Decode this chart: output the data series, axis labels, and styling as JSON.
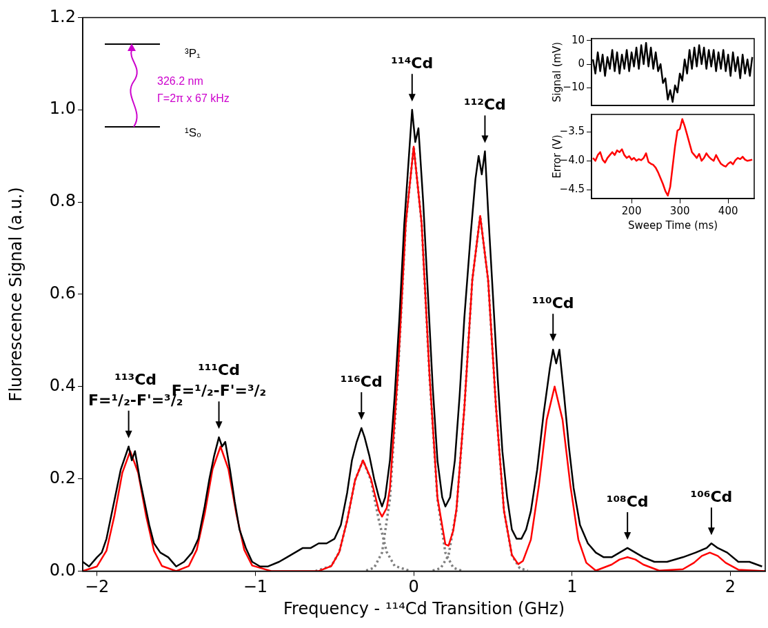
{
  "chart_data": [
    {
      "type": "line",
      "xlabel": "Frequency - ¹¹⁴Cd Transition (GHz)",
      "ylabel": "Fluorescence Signal (a.u.)",
      "marker": "none",
      "grid": false,
      "xlim": [
        -2.09,
        2.22
      ],
      "xticks": [
        {
          "value": -2,
          "label": "−2"
        },
        {
          "value": -1,
          "label": "−1"
        },
        0,
        1,
        2
      ],
      "ylim": [
        0,
        1.2
      ],
      "yticks": [
        {
          "value": 0,
          "label": "0.0"
        },
        {
          "value": 0.2,
          "label": "0.2"
        },
        {
          "value": 0.4,
          "label": "0.4"
        },
        {
          "value": 0.6,
          "label": "0.6"
        },
        {
          "value": 0.8,
          "label": "0.8"
        },
        {
          "value": 1,
          "label": "1.0"
        },
        {
          "value": 1.2,
          "label": "1.2"
        }
      ],
      "annotations": [
        "³P₁",
        "¹S₀",
        "326.2 nm",
        "Γ=2π x 67 kHz",
        {
          "text": "¹¹³Cd\nF=¹/₂-F'=³/₂",
          "x": -1.8,
          "y": 0.27
        },
        {
          "text": "¹¹¹Cd\nF=¹/₂-F'=³/₂",
          "x": -1.23,
          "y": 0.29
        },
        {
          "text": "¹¹⁶Cd",
          "x": -0.33,
          "y": 0.31
        },
        {
          "text": "¹¹⁴Cd",
          "x": -0.01,
          "y": 1.0
        },
        {
          "text": "¹¹²Cd",
          "x": 0.45,
          "y": 0.91
        },
        {
          "text": "¹¹⁰Cd",
          "x": 0.88,
          "y": 0.48
        },
        {
          "text": "¹⁰⁸Cd",
          "x": 1.35,
          "y": 0.05
        },
        {
          "text": "¹⁰⁶Cd",
          "x": 1.88,
          "y": 0.06
        }
      ],
      "series": [
        {
          "color": "#000000",
          "line_style": "solid",
          "x": [
            -2.09,
            -2.05,
            -2.0,
            -1.97,
            -1.94,
            -1.91,
            -1.88,
            -1.85,
            -1.82,
            -1.8,
            -1.78,
            -1.76,
            -1.73,
            -1.7,
            -1.67,
            -1.64,
            -1.6,
            -1.55,
            -1.5,
            -1.45,
            -1.4,
            -1.36,
            -1.32,
            -1.29,
            -1.26,
            -1.23,
            -1.21,
            -1.19,
            -1.16,
            -1.13,
            -1.1,
            -1.06,
            -1.02,
            -0.97,
            -0.92,
            -0.85,
            -0.8,
            -0.75,
            -0.7,
            -0.65,
            -0.6,
            -0.55,
            -0.5,
            -0.46,
            -0.42,
            -0.39,
            -0.36,
            -0.33,
            -0.31,
            -0.28,
            -0.25,
            -0.22,
            -0.2,
            -0.18,
            -0.15,
            -0.12,
            -0.09,
            -0.06,
            -0.03,
            -0.01,
            0.01,
            0.03,
            0.06,
            0.09,
            0.12,
            0.15,
            0.18,
            0.2,
            0.23,
            0.26,
            0.29,
            0.32,
            0.36,
            0.39,
            0.41,
            0.43,
            0.45,
            0.47,
            0.5,
            0.53,
            0.56,
            0.59,
            0.62,
            0.65,
            0.68,
            0.71,
            0.74,
            0.78,
            0.82,
            0.86,
            0.88,
            0.9,
            0.92,
            0.95,
            0.98,
            1.01,
            1.05,
            1.1,
            1.15,
            1.2,
            1.25,
            1.3,
            1.35,
            1.4,
            1.45,
            1.52,
            1.6,
            1.7,
            1.78,
            1.85,
            1.88,
            1.92,
            1.98,
            2.05,
            2.12,
            2.2
          ],
          "values": [
            0.02,
            0.01,
            0.03,
            0.04,
            0.07,
            0.12,
            0.17,
            0.22,
            0.25,
            0.27,
            0.24,
            0.26,
            0.2,
            0.15,
            0.1,
            0.06,
            0.04,
            0.03,
            0.01,
            0.02,
            0.04,
            0.07,
            0.14,
            0.2,
            0.25,
            0.29,
            0.27,
            0.28,
            0.22,
            0.15,
            0.09,
            0.05,
            0.02,
            0.01,
            0.01,
            0.02,
            0.03,
            0.04,
            0.05,
            0.05,
            0.06,
            0.06,
            0.07,
            0.1,
            0.17,
            0.24,
            0.28,
            0.31,
            0.29,
            0.25,
            0.2,
            0.16,
            0.14,
            0.16,
            0.24,
            0.38,
            0.55,
            0.75,
            0.9,
            1.0,
            0.93,
            0.96,
            0.8,
            0.6,
            0.4,
            0.24,
            0.16,
            0.14,
            0.16,
            0.24,
            0.38,
            0.55,
            0.73,
            0.85,
            0.9,
            0.86,
            0.91,
            0.78,
            0.6,
            0.42,
            0.26,
            0.16,
            0.09,
            0.07,
            0.07,
            0.09,
            0.13,
            0.22,
            0.34,
            0.44,
            0.48,
            0.45,
            0.48,
            0.38,
            0.27,
            0.18,
            0.1,
            0.06,
            0.04,
            0.03,
            0.03,
            0.04,
            0.05,
            0.04,
            0.03,
            0.02,
            0.02,
            0.03,
            0.04,
            0.05,
            0.06,
            0.05,
            0.04,
            0.02,
            0.02,
            0.01
          ]
        },
        {
          "color": "#ff0000",
          "line_style": "solid",
          "x": [
            -2.09,
            -2.0,
            -1.94,
            -1.89,
            -1.84,
            -1.79,
            -1.74,
            -1.69,
            -1.64,
            -1.59,
            -1.5,
            -1.42,
            -1.37,
            -1.32,
            -1.27,
            -1.22,
            -1.17,
            -1.12,
            -1.07,
            -1.02,
            -0.9,
            -0.6,
            -0.52,
            -0.47,
            -0.42,
            -0.37,
            -0.32,
            -0.27,
            -0.22,
            -0.2,
            -0.17,
            -0.15,
            -0.1,
            -0.05,
            0,
            0.05,
            0.1,
            0.15,
            0.2,
            0.22,
            0.25,
            0.27,
            0.32,
            0.37,
            0.42,
            0.47,
            0.52,
            0.57,
            0.62,
            0.66,
            0.69,
            0.74,
            0.79,
            0.84,
            0.89,
            0.94,
            0.99,
            1.04,
            1.09,
            1.15,
            1.25,
            1.3,
            1.35,
            1.4,
            1.45,
            1.55,
            1.7,
            1.77,
            1.82,
            1.87,
            1.92,
            1.97,
            2.05,
            2.22
          ],
          "values": [
            0,
            0.01,
            0.044,
            0.12,
            0.213,
            0.26,
            0.213,
            0.12,
            0.044,
            0.011,
            0,
            0.011,
            0.046,
            0.124,
            0.221,
            0.27,
            0.221,
            0.124,
            0.046,
            0.012,
            0,
            0,
            0.011,
            0.041,
            0.11,
            0.197,
            0.24,
            0.2,
            0.131,
            0.118,
            0.137,
            0.18,
            0.428,
            0.754,
            0.92,
            0.754,
            0.425,
            0.159,
            0.058,
            0.055,
            0.088,
            0.134,
            0.354,
            0.631,
            0.77,
            0.631,
            0.354,
            0.131,
            0.035,
            0.015,
            0.022,
            0.068,
            0.184,
            0.328,
            0.4,
            0.328,
            0.184,
            0.068,
            0.018,
            0.001,
            0.014,
            0.025,
            0.03,
            0.025,
            0.014,
            0.001,
            0.004,
            0.018,
            0.033,
            0.04,
            0.033,
            0.018,
            0.003,
            0
          ]
        },
        {
          "color": "#808080",
          "line_style": "dotted",
          "x": [
            -0.62,
            -0.52,
            -0.47,
            -0.42,
            -0.37,
            -0.32,
            -0.27,
            -0.22,
            -0.17,
            -0.12,
            -0.02
          ],
          "values": [
            0,
            0.011,
            0.041,
            0.11,
            0.197,
            0.24,
            0.197,
            0.11,
            0.041,
            0.011,
            0
          ]
        },
        {
          "color": "#808080",
          "line_style": "dotted",
          "x": [
            -0.3,
            -0.25,
            -0.2,
            -0.15,
            -0.1,
            -0.05,
            0,
            0.05,
            0.1,
            0.15,
            0.2,
            0.25,
            0.3
          ],
          "values": [
            0.001,
            0.007,
            0.04,
            0.156,
            0.423,
            0.754,
            0.92,
            0.754,
            0.423,
            0.156,
            0.04,
            0.007,
            0.001
          ]
        },
        {
          "color": "#808080",
          "line_style": "dotted",
          "x": [
            0.12,
            0.17,
            0.22,
            0.27,
            0.32,
            0.37,
            0.42,
            0.47,
            0.52,
            0.57,
            0.62,
            0.67,
            0.72
          ],
          "values": [
            0.001,
            0.006,
            0.034,
            0.131,
            0.354,
            0.631,
            0.77,
            0.631,
            0.354,
            0.131,
            0.034,
            0.006,
            0.001
          ]
        }
      ]
    },
    {
      "type": "line",
      "ylabel": "Signal (mV)",
      "marker": "none",
      "grid": false,
      "tick_labels": "y",
      "xlim": [
        117,
        454
      ],
      "xticks": [
        200,
        300,
        400
      ],
      "ylim": [
        -17.5,
        10.8
      ],
      "yticks": [
        {
          "value": -10,
          "label": "−10"
        },
        0,
        10
      ],
      "series": [
        {
          "color": "#000000",
          "line_style": "solid",
          "x": [
            120,
            125,
            130,
            135,
            140,
            145,
            150,
            155,
            160,
            165,
            170,
            175,
            180,
            185,
            190,
            195,
            200,
            205,
            210,
            215,
            220,
            225,
            230,
            235,
            240,
            245,
            250,
            255,
            260,
            265,
            270,
            275,
            280,
            285,
            290,
            295,
            300,
            305,
            310,
            315,
            320,
            325,
            330,
            335,
            340,
            345,
            350,
            355,
            360,
            365,
            370,
            375,
            380,
            385,
            390,
            395,
            400,
            405,
            410,
            415,
            420,
            425,
            430,
            435,
            440,
            445,
            450
          ],
          "values": [
            2,
            -4,
            5,
            -3,
            4,
            -5,
            3,
            -2,
            6,
            -3,
            5,
            -4,
            4,
            -2,
            6,
            -3,
            5,
            -1,
            7,
            -2,
            8,
            0,
            9,
            -1,
            7,
            -2,
            5,
            -3,
            0,
            -8,
            -6,
            -15,
            -11,
            -16,
            -9,
            -12,
            -4,
            -7,
            2,
            -4,
            6,
            -2,
            7,
            -1,
            8,
            0,
            7,
            -2,
            6,
            -1,
            6,
            -3,
            5,
            -2,
            6,
            -3,
            4,
            -5,
            5,
            -3,
            3,
            -6,
            4,
            -4,
            2,
            -5,
            3
          ]
        }
      ]
    },
    {
      "type": "line",
      "xlabel": "Sweep Time (ms)",
      "ylabel": "Error (V)",
      "marker": "none",
      "grid": false,
      "xlim": [
        117,
        454
      ],
      "xticks": [
        200,
        300,
        400
      ],
      "ylim": [
        -4.65,
        -3.2
      ],
      "yticks": [
        {
          "value": -4.5,
          "label": "−4.5"
        },
        {
          "value": -4,
          "label": "−4.0"
        },
        {
          "value": -3.5,
          "label": "−3.5"
        }
      ],
      "series": [
        {
          "color": "#ff0000",
          "line_style": "solid",
          "x": [
            120,
            125,
            130,
            135,
            140,
            145,
            150,
            155,
            160,
            165,
            170,
            175,
            180,
            185,
            190,
            195,
            200,
            205,
            210,
            215,
            220,
            225,
            230,
            235,
            240,
            245,
            250,
            255,
            260,
            265,
            270,
            275,
            280,
            285,
            290,
            295,
            300,
            305,
            310,
            315,
            320,
            325,
            330,
            335,
            340,
            345,
            350,
            355,
            360,
            365,
            370,
            375,
            380,
            385,
            390,
            395,
            400,
            405,
            410,
            415,
            420,
            425,
            430,
            435,
            440,
            445,
            450
          ],
          "values": [
            -3.95,
            -4.0,
            -3.9,
            -3.85,
            -3.98,
            -4.03,
            -3.95,
            -3.9,
            -3.85,
            -3.9,
            -3.82,
            -3.85,
            -3.8,
            -3.9,
            -3.95,
            -3.92,
            -3.98,
            -3.95,
            -4.0,
            -3.97,
            -3.99,
            -3.95,
            -3.87,
            -4.02,
            -4.05,
            -4.07,
            -4.12,
            -4.2,
            -4.3,
            -4.4,
            -4.52,
            -4.6,
            -4.45,
            -4.1,
            -3.75,
            -3.48,
            -3.45,
            -3.28,
            -3.4,
            -3.55,
            -3.7,
            -3.85,
            -3.9,
            -3.95,
            -3.88,
            -4.0,
            -3.95,
            -3.87,
            -3.93,
            -3.97,
            -4.0,
            -3.9,
            -3.98,
            -4.05,
            -4.08,
            -4.1,
            -4.05,
            -4.02,
            -4.06,
            -3.99,
            -3.95,
            -3.97,
            -3.93,
            -3.98,
            -4.0,
            -3.99,
            -3.98
          ]
        }
      ]
    }
  ]
}
